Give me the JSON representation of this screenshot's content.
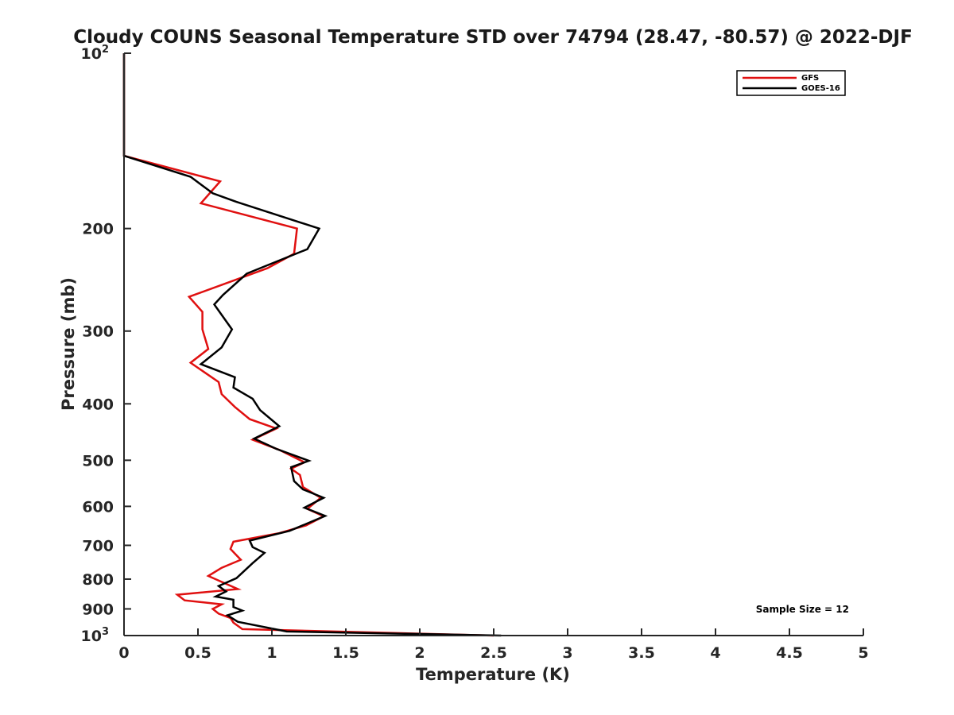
{
  "chart_data": {
    "type": "line",
    "title": "Cloudy COUNS Seasonal Temperature STD over 74794 (28.47, -80.57) @ 2022-DJF",
    "xlabel": "Temperature (K)",
    "ylabel": "Pressure (mb)",
    "xlim": [
      0,
      5
    ],
    "ylim": [
      100,
      1000
    ],
    "y_scale": "log",
    "y_reversed": true,
    "x_ticks": [
      {
        "value": 0,
        "label": "0"
      },
      {
        "value": 0.5,
        "label": "0.5"
      },
      {
        "value": 1,
        "label": "1"
      },
      {
        "value": 1.5,
        "label": "1.5"
      },
      {
        "value": 2,
        "label": "2"
      },
      {
        "value": 2.5,
        "label": "2.5"
      },
      {
        "value": 3,
        "label": "3"
      },
      {
        "value": 3.5,
        "label": "3.5"
      },
      {
        "value": 4,
        "label": "4"
      },
      {
        "value": 4.5,
        "label": "4.5"
      },
      {
        "value": 5,
        "label": "5"
      }
    ],
    "y_ticks": [
      {
        "value": 100,
        "label": "10",
        "exponent": "2"
      },
      {
        "value": 200,
        "label": "200"
      },
      {
        "value": 300,
        "label": "300"
      },
      {
        "value": 400,
        "label": "400"
      },
      {
        "value": 500,
        "label": "500"
      },
      {
        "value": 600,
        "label": "600"
      },
      {
        "value": 700,
        "label": "700"
      },
      {
        "value": 800,
        "label": "800"
      },
      {
        "value": 900,
        "label": "900"
      },
      {
        "value": 1000,
        "label": "10",
        "exponent": "3"
      }
    ],
    "grid": false,
    "legend_position": "top-right",
    "annotation": "Sample Size = 12",
    "series": [
      {
        "name": "GFS",
        "color": "#e01010",
        "points": [
          {
            "x": 0,
            "p": 100
          },
          {
            "x": 0,
            "p": 150
          },
          {
            "x": 0.65,
            "p": 166
          },
          {
            "x": 0.52,
            "p": 181
          },
          {
            "x": 1.17,
            "p": 200
          },
          {
            "x": 1.15,
            "p": 221
          },
          {
            "x": 0.97,
            "p": 234
          },
          {
            "x": 0.44,
            "p": 262
          },
          {
            "x": 0.53,
            "p": 278
          },
          {
            "x": 0.53,
            "p": 298
          },
          {
            "x": 0.57,
            "p": 322
          },
          {
            "x": 0.45,
            "p": 340
          },
          {
            "x": 0.64,
            "p": 367
          },
          {
            "x": 0.66,
            "p": 385
          },
          {
            "x": 0.75,
            "p": 405
          },
          {
            "x": 0.85,
            "p": 425
          },
          {
            "x": 1.03,
            "p": 441
          },
          {
            "x": 0.87,
            "p": 461
          },
          {
            "x": 1.05,
            "p": 480
          },
          {
            "x": 1.22,
            "p": 504
          },
          {
            "x": 1.13,
            "p": 517
          },
          {
            "x": 1.19,
            "p": 530
          },
          {
            "x": 1.21,
            "p": 556
          },
          {
            "x": 1.33,
            "p": 580
          },
          {
            "x": 1.24,
            "p": 606
          },
          {
            "x": 1.35,
            "p": 624
          },
          {
            "x": 1.23,
            "p": 647
          },
          {
            "x": 1.05,
            "p": 667
          },
          {
            "x": 0.74,
            "p": 690
          },
          {
            "x": 0.72,
            "p": 710
          },
          {
            "x": 0.79,
            "p": 741
          },
          {
            "x": 0.66,
            "p": 765
          },
          {
            "x": 0.57,
            "p": 790
          },
          {
            "x": 0.77,
            "p": 832
          },
          {
            "x": 0.36,
            "p": 851
          },
          {
            "x": 0.41,
            "p": 870
          },
          {
            "x": 0.66,
            "p": 884
          },
          {
            "x": 0.6,
            "p": 900
          },
          {
            "x": 0.64,
            "p": 917
          },
          {
            "x": 0.72,
            "p": 933
          },
          {
            "x": 0.74,
            "p": 950
          },
          {
            "x": 0.8,
            "p": 975
          },
          {
            "x": 2.5,
            "p": 1000
          }
        ]
      },
      {
        "name": "GOES-16",
        "color": "#000000",
        "points": [
          {
            "x": 0,
            "p": 100
          },
          {
            "x": 0,
            "p": 150
          },
          {
            "x": 0.45,
            "p": 163
          },
          {
            "x": 0.6,
            "p": 174
          },
          {
            "x": 0.76,
            "p": 180
          },
          {
            "x": 1.32,
            "p": 200
          },
          {
            "x": 1.24,
            "p": 217
          },
          {
            "x": 0.83,
            "p": 239
          },
          {
            "x": 0.67,
            "p": 260
          },
          {
            "x": 0.61,
            "p": 270
          },
          {
            "x": 0.73,
            "p": 298
          },
          {
            "x": 0.66,
            "p": 320
          },
          {
            "x": 0.52,
            "p": 342
          },
          {
            "x": 0.75,
            "p": 360
          },
          {
            "x": 0.74,
            "p": 375
          },
          {
            "x": 0.87,
            "p": 392
          },
          {
            "x": 0.92,
            "p": 410
          },
          {
            "x": 1.05,
            "p": 437
          },
          {
            "x": 0.88,
            "p": 459
          },
          {
            "x": 1.03,
            "p": 478
          },
          {
            "x": 1.25,
            "p": 501
          },
          {
            "x": 1.13,
            "p": 514
          },
          {
            "x": 1.15,
            "p": 543
          },
          {
            "x": 1.21,
            "p": 561
          },
          {
            "x": 1.35,
            "p": 580
          },
          {
            "x": 1.22,
            "p": 603
          },
          {
            "x": 1.36,
            "p": 623
          },
          {
            "x": 1.12,
            "p": 661
          },
          {
            "x": 0.85,
            "p": 687
          },
          {
            "x": 0.87,
            "p": 705
          },
          {
            "x": 0.95,
            "p": 721
          },
          {
            "x": 0.87,
            "p": 751
          },
          {
            "x": 0.76,
            "p": 797
          },
          {
            "x": 0.64,
            "p": 822
          },
          {
            "x": 0.69,
            "p": 840
          },
          {
            "x": 0.62,
            "p": 857
          },
          {
            "x": 0.74,
            "p": 868
          },
          {
            "x": 0.74,
            "p": 893
          },
          {
            "x": 0.8,
            "p": 906
          },
          {
            "x": 0.7,
            "p": 923
          },
          {
            "x": 0.77,
            "p": 947
          },
          {
            "x": 1.1,
            "p": 984
          },
          {
            "x": 2.55,
            "p": 1000
          }
        ]
      }
    ]
  }
}
